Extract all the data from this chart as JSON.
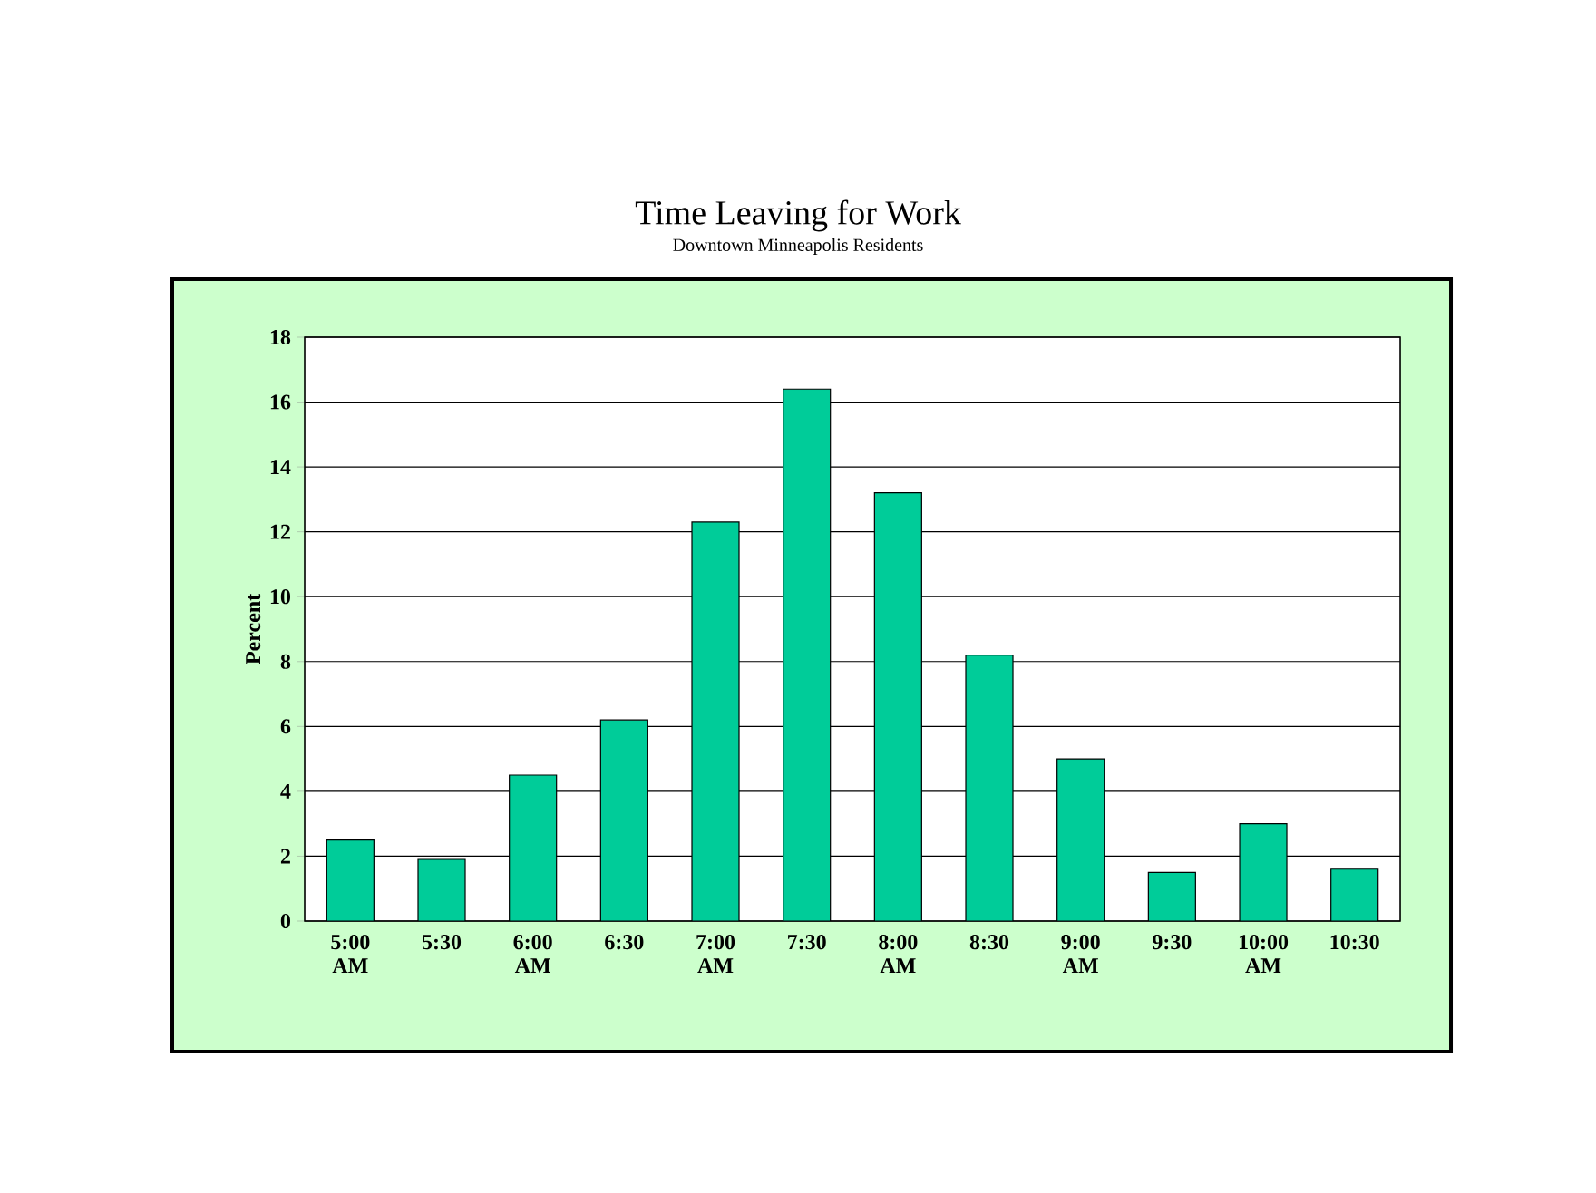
{
  "chart_data": {
    "type": "bar",
    "title": "Time Leaving for Work",
    "subtitle": "Downtown Minneapolis Residents",
    "ylabel": "Percent",
    "categories": [
      "5:00 AM",
      "5:30",
      "6:00 AM",
      "6:30",
      "7:00 AM",
      "7:30",
      "8:00 AM",
      "8:30",
      "9:00 AM",
      "9:30",
      "10:00 AM",
      "10:30"
    ],
    "values": [
      2.5,
      1.9,
      4.5,
      6.2,
      12.3,
      16.4,
      13.2,
      8.2,
      5.0,
      1.5,
      3.0,
      1.6
    ],
    "color": "#00cc99",
    "ylim": [
      0,
      18
    ],
    "yticks": [
      0,
      2,
      4,
      6,
      8,
      10,
      12,
      14,
      16,
      18
    ],
    "grid": "y"
  }
}
